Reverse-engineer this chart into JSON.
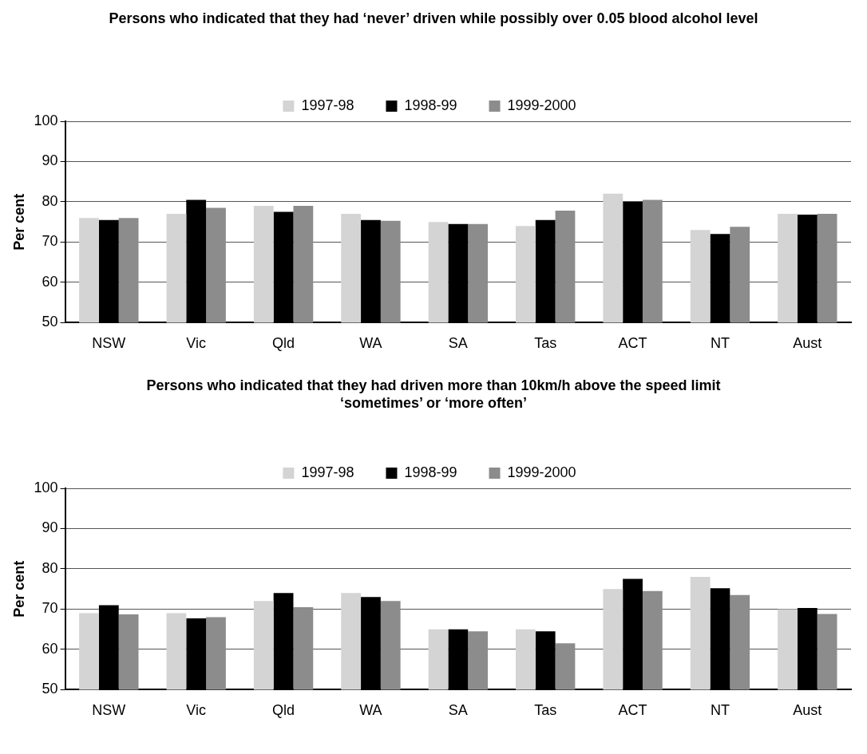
{
  "chart_data": [
    {
      "type": "bar",
      "title": "Persons who indicated that they had ‘never’ driven while possibly over 0.05 blood alcohol level",
      "ylabel": "Per cent",
      "categories": [
        "NSW",
        "Vic",
        "Qld",
        "WA",
        "SA",
        "Tas",
        "ACT",
        "NT",
        "Aust"
      ],
      "series": [
        {
          "name": "1997-98",
          "color": "#d4d4d4",
          "values": [
            76,
            77,
            79,
            77,
            75,
            74,
            82,
            73,
            77
          ]
        },
        {
          "name": "1998-99",
          "color": "#000000",
          "values": [
            75.5,
            80.5,
            77.5,
            75.5,
            74.5,
            75.5,
            80,
            72,
            76.8
          ]
        },
        {
          "name": "1999-2000",
          "color": "#8c8c8c",
          "values": [
            76,
            78.5,
            79,
            75.3,
            74.5,
            77.8,
            80.5,
            73.8,
            77
          ]
        }
      ],
      "ylim": [
        50,
        100
      ],
      "yticks": [
        50,
        60,
        70,
        80,
        90,
        100
      ],
      "grid": "y",
      "legend": "top"
    },
    {
      "type": "bar",
      "title": "Persons who indicated that they had driven more than 10km/h above the speed limit ‘sometimes’ or ‘more often’",
      "ylabel": "Per cent",
      "categories": [
        "NSW",
        "Vic",
        "Qld",
        "WA",
        "SA",
        "Tas",
        "ACT",
        "NT",
        "Aust"
      ],
      "series": [
        {
          "name": "1997-98",
          "color": "#d4d4d4",
          "values": [
            69,
            69,
            72,
            74,
            65,
            65,
            75,
            78,
            70
          ]
        },
        {
          "name": "1998-99",
          "color": "#000000",
          "values": [
            71,
            67.7,
            74,
            73,
            65,
            64.5,
            77.5,
            75.2,
            70.3
          ]
        },
        {
          "name": "1999-2000",
          "color": "#8c8c8c",
          "values": [
            68.7,
            68,
            70.5,
            72,
            64.5,
            61.5,
            74.5,
            73.5,
            68.8
          ]
        }
      ],
      "ylim": [
        50,
        100
      ],
      "yticks": [
        50,
        60,
        70,
        80,
        90,
        100
      ],
      "grid": "y",
      "legend": "top"
    }
  ]
}
